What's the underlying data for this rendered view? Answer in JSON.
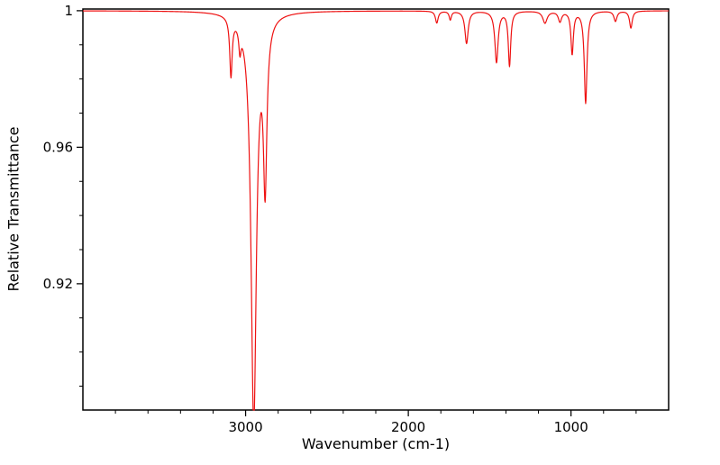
{
  "chart_data": {
    "type": "line",
    "title": "",
    "xlabel": "Wavenumber (cm-1)",
    "ylabel": "Relative Transmittance",
    "grid": false,
    "legend": null,
    "background": "#ffffff",
    "line_color": "#ee1111",
    "x_axis": {
      "min": 400,
      "max": 4000,
      "reversed": true,
      "major_ticks": [
        3000,
        2000,
        1000
      ],
      "major_tick_labels": [
        "3000",
        "2000",
        "1000"
      ],
      "minor_tick_step": 200
    },
    "y_axis": {
      "min": 0.883,
      "max": 1.0005,
      "major_ticks": [
        1,
        0.96,
        0.92
      ],
      "major_tick_labels": [
        "1",
        "0.96",
        "0.92"
      ],
      "minor_tick_step": 0.01
    },
    "series_model": {
      "description": "IR transmittance spectrum: baseline minus Lorentzian absorption dips",
      "baseline_transmittance": 1.0,
      "profile": "lorentzian_dips",
      "sample_step_cm1": 2,
      "bands": [
        {
          "center": 3090,
          "depth": 0.017,
          "hwhm": 9
        },
        {
          "center": 3035,
          "depth": 0.0065,
          "hwhm": 8
        },
        {
          "center": 2950,
          "depth": 0.12,
          "hwhm": 20
        },
        {
          "center": 2880,
          "depth": 0.047,
          "hwhm": 13
        },
        {
          "center": 1825,
          "depth": 0.0035,
          "hwhm": 10
        },
        {
          "center": 1742,
          "depth": 0.0025,
          "hwhm": 8
        },
        {
          "center": 1642,
          "depth": 0.0095,
          "hwhm": 12
        },
        {
          "center": 1458,
          "depth": 0.015,
          "hwhm": 12
        },
        {
          "center": 1378,
          "depth": 0.016,
          "hwhm": 9
        },
        {
          "center": 1160,
          "depth": 0.0035,
          "hwhm": 16
        },
        {
          "center": 1068,
          "depth": 0.003,
          "hwhm": 12
        },
        {
          "center": 993,
          "depth": 0.0125,
          "hwhm": 9
        },
        {
          "center": 910,
          "depth": 0.027,
          "hwhm": 10
        },
        {
          "center": 727,
          "depth": 0.003,
          "hwhm": 11
        },
        {
          "center": 632,
          "depth": 0.005,
          "hwhm": 10
        }
      ]
    },
    "key_minima": [
      {
        "wavenumber": 3090,
        "transmittance": 0.983
      },
      {
        "wavenumber": 3035,
        "transmittance": 0.993
      },
      {
        "wavenumber": 2950,
        "transmittance": 0.883
      },
      {
        "wavenumber": 2880,
        "transmittance": 0.944
      },
      {
        "wavenumber": 1642,
        "transmittance": 0.99
      },
      {
        "wavenumber": 1458,
        "transmittance": 0.985
      },
      {
        "wavenumber": 1378,
        "transmittance": 0.984
      },
      {
        "wavenumber": 993,
        "transmittance": 0.987
      },
      {
        "wavenumber": 910,
        "transmittance": 0.973
      },
      {
        "wavenumber": 632,
        "transmittance": 0.995
      }
    ]
  }
}
